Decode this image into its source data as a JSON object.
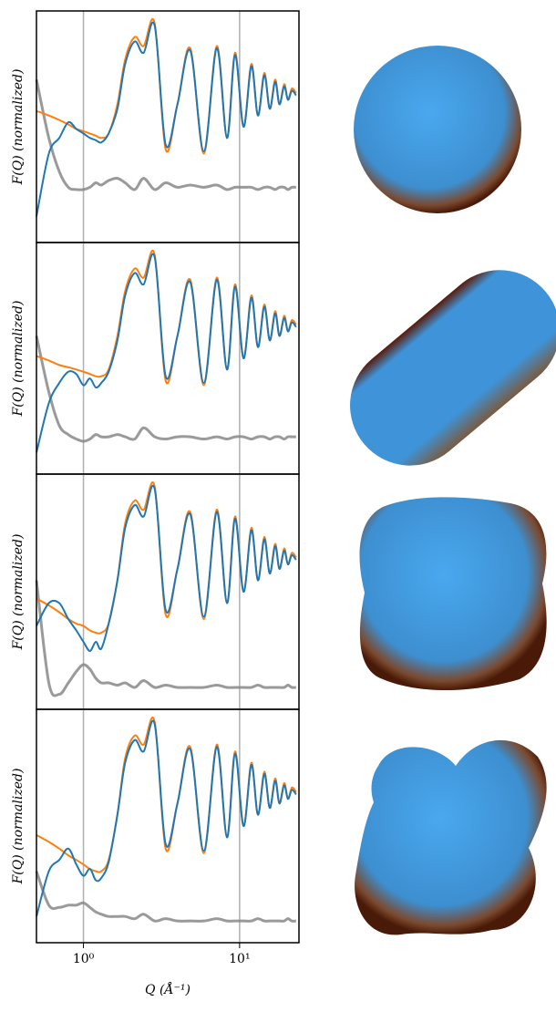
{
  "chart_data": [
    {
      "type": "line",
      "ylabel": "F(Q) (normalized)",
      "log_x": true,
      "grid": true,
      "xlim": [
        0.5,
        24
      ],
      "ylim": [
        0,
        1
      ],
      "xticks": [
        {
          "value": 1,
          "label": "10⁰"
        },
        {
          "value": 10,
          "label": "10¹"
        }
      ],
      "x": [
        0.5,
        0.6,
        0.7,
        0.8,
        0.9,
        1.0,
        1.1,
        1.2,
        1.3,
        1.45,
        1.65,
        1.85,
        2.13,
        2.43,
        2.86,
        3.36,
        4.0,
        4.83,
        5.9,
        7.14,
        8.3,
        9.35,
        10.6,
        11.9,
        13.1,
        14.4,
        15.6,
        16.9,
        18,
        19.3,
        20.4,
        21.6,
        23
      ],
      "series": [
        {
          "color": "#888888",
          "values": [
            0.71,
            0.45,
            0.3,
            0.23,
            0.22,
            0.22,
            0.23,
            0.25,
            0.24,
            0.26,
            0.27,
            0.25,
            0.22,
            0.27,
            0.22,
            0.25,
            0.23,
            0.24,
            0.23,
            0.24,
            0.22,
            0.23,
            0.23,
            0.23,
            0.22,
            0.23,
            0.23,
            0.22,
            0.23,
            0.23,
            0.22,
            0.23,
            0.23
          ]
        },
        {
          "color": "#ff7f0e",
          "values": [
            0.57,
            0.55,
            0.53,
            0.51,
            0.49,
            0.48,
            0.47,
            0.46,
            0.45,
            0.47,
            0.6,
            0.8,
            0.9,
            0.86,
            0.96,
            0.4,
            0.6,
            0.85,
            0.38,
            0.86,
            0.45,
            0.83,
            0.5,
            0.78,
            0.55,
            0.74,
            0.58,
            0.71,
            0.6,
            0.69,
            0.62,
            0.67,
            0.65
          ]
        },
        {
          "color": "#1f77b4",
          "values": [
            0.1,
            0.38,
            0.45,
            0.52,
            0.49,
            0.47,
            0.45,
            0.44,
            0.43,
            0.47,
            0.58,
            0.78,
            0.88,
            0.83,
            0.95,
            0.42,
            0.6,
            0.84,
            0.39,
            0.85,
            0.45,
            0.82,
            0.5,
            0.77,
            0.55,
            0.73,
            0.58,
            0.7,
            0.6,
            0.68,
            0.62,
            0.66,
            0.64
          ]
        }
      ]
    },
    {
      "type": "line",
      "ylabel": "F(Q) (normalized)",
      "log_x": true,
      "grid": true,
      "xlim": [
        0.5,
        24
      ],
      "ylim": [
        0,
        1
      ],
      "xticks": [
        {
          "value": 1,
          "label": "10⁰"
        },
        {
          "value": 10,
          "label": "10¹"
        }
      ],
      "x": [
        0.5,
        0.6,
        0.7,
        0.8,
        0.9,
        1.0,
        1.1,
        1.2,
        1.3,
        1.45,
        1.65,
        1.85,
        2.13,
        2.43,
        2.86,
        3.36,
        4.0,
        4.83,
        5.9,
        7.14,
        8.3,
        9.35,
        10.6,
        11.9,
        13.1,
        14.4,
        15.6,
        16.9,
        18,
        19.3,
        20.4,
        21.6,
        23
      ],
      "series": [
        {
          "color": "#888888",
          "values": [
            0.6,
            0.35,
            0.2,
            0.16,
            0.14,
            0.13,
            0.14,
            0.16,
            0.15,
            0.15,
            0.16,
            0.15,
            0.14,
            0.19,
            0.15,
            0.14,
            0.15,
            0.15,
            0.14,
            0.15,
            0.14,
            0.15,
            0.15,
            0.14,
            0.15,
            0.15,
            0.14,
            0.15,
            0.15,
            0.14,
            0.15,
            0.15,
            0.15
          ]
        },
        {
          "color": "#ff7f0e",
          "values": [
            0.51,
            0.49,
            0.47,
            0.46,
            0.45,
            0.44,
            0.43,
            0.42,
            0.42,
            0.45,
            0.6,
            0.8,
            0.9,
            0.86,
            0.96,
            0.4,
            0.6,
            0.85,
            0.38,
            0.86,
            0.45,
            0.83,
            0.5,
            0.78,
            0.55,
            0.74,
            0.58,
            0.71,
            0.6,
            0.69,
            0.62,
            0.67,
            0.65
          ]
        },
        {
          "color": "#1f77b4",
          "values": [
            0.08,
            0.3,
            0.39,
            0.44,
            0.43,
            0.38,
            0.41,
            0.37,
            0.39,
            0.44,
            0.58,
            0.78,
            0.88,
            0.83,
            0.95,
            0.42,
            0.6,
            0.84,
            0.39,
            0.85,
            0.45,
            0.82,
            0.5,
            0.77,
            0.55,
            0.73,
            0.58,
            0.7,
            0.6,
            0.68,
            0.62,
            0.66,
            0.64
          ]
        }
      ]
    },
    {
      "type": "line",
      "ylabel": "F(Q) (normalized)",
      "log_x": true,
      "grid": true,
      "xlim": [
        0.5,
        24
      ],
      "ylim": [
        0,
        1
      ],
      "xticks": [
        {
          "value": 1,
          "label": "10⁰"
        },
        {
          "value": 10,
          "label": "10¹"
        }
      ],
      "x": [
        0.5,
        0.6,
        0.7,
        0.8,
        0.9,
        1.0,
        1.1,
        1.2,
        1.3,
        1.45,
        1.65,
        1.85,
        2.13,
        2.43,
        2.86,
        3.36,
        4.0,
        4.83,
        5.9,
        7.14,
        8.3,
        9.35,
        10.6,
        11.9,
        13.1,
        14.4,
        15.6,
        16.9,
        18,
        19.3,
        20.4,
        21.6,
        23
      ],
      "series": [
        {
          "color": "#888888",
          "values": [
            0.55,
            0.1,
            0.05,
            0.1,
            0.15,
            0.18,
            0.16,
            0.12,
            0.1,
            0.1,
            0.09,
            0.1,
            0.08,
            0.11,
            0.08,
            0.09,
            0.08,
            0.08,
            0.08,
            0.09,
            0.08,
            0.08,
            0.08,
            0.08,
            0.09,
            0.08,
            0.08,
            0.08,
            0.08,
            0.08,
            0.09,
            0.08,
            0.08
          ]
        },
        {
          "color": "#ff7f0e",
          "values": [
            0.47,
            0.44,
            0.41,
            0.38,
            0.36,
            0.35,
            0.33,
            0.32,
            0.32,
            0.36,
            0.55,
            0.8,
            0.9,
            0.86,
            0.96,
            0.4,
            0.6,
            0.85,
            0.38,
            0.86,
            0.45,
            0.83,
            0.5,
            0.78,
            0.55,
            0.74,
            0.58,
            0.71,
            0.6,
            0.69,
            0.62,
            0.67,
            0.65
          ]
        },
        {
          "color": "#1f77b4",
          "values": [
            0.35,
            0.45,
            0.45,
            0.38,
            0.33,
            0.28,
            0.24,
            0.28,
            0.25,
            0.36,
            0.55,
            0.78,
            0.88,
            0.83,
            0.95,
            0.42,
            0.6,
            0.84,
            0.39,
            0.85,
            0.45,
            0.82,
            0.5,
            0.77,
            0.55,
            0.73,
            0.58,
            0.7,
            0.6,
            0.68,
            0.62,
            0.66,
            0.64
          ]
        }
      ]
    },
    {
      "type": "line",
      "ylabel": "F(Q) (normalized)",
      "xlabel": "Q (Å⁻¹)",
      "log_x": true,
      "grid": true,
      "xlim": [
        0.5,
        24
      ],
      "ylim": [
        0,
        1
      ],
      "xticks": [
        {
          "value": 1,
          "label": "10⁰"
        },
        {
          "value": 10,
          "label": "10¹"
        }
      ],
      "x": [
        0.5,
        0.6,
        0.7,
        0.8,
        0.9,
        1.0,
        1.1,
        1.2,
        1.3,
        1.45,
        1.65,
        1.85,
        2.13,
        2.43,
        2.86,
        3.36,
        4.0,
        4.83,
        5.9,
        7.14,
        8.3,
        9.35,
        10.6,
        11.9,
        13.1,
        14.4,
        15.6,
        16.9,
        18,
        19.3,
        20.4,
        21.6,
        23
      ],
      "series": [
        {
          "color": "#888888",
          "values": [
            0.3,
            0.15,
            0.14,
            0.15,
            0.15,
            0.16,
            0.14,
            0.12,
            0.11,
            0.1,
            0.1,
            0.1,
            0.09,
            0.11,
            0.08,
            0.09,
            0.08,
            0.08,
            0.08,
            0.09,
            0.08,
            0.08,
            0.08,
            0.08,
            0.09,
            0.08,
            0.08,
            0.08,
            0.08,
            0.08,
            0.09,
            0.08,
            0.08
          ]
        },
        {
          "color": "#ff7f0e",
          "values": [
            0.46,
            0.43,
            0.4,
            0.37,
            0.35,
            0.33,
            0.31,
            0.3,
            0.3,
            0.35,
            0.55,
            0.8,
            0.9,
            0.86,
            0.96,
            0.4,
            0.6,
            0.85,
            0.38,
            0.86,
            0.45,
            0.83,
            0.5,
            0.78,
            0.55,
            0.74,
            0.58,
            0.71,
            0.6,
            0.69,
            0.62,
            0.67,
            0.65
          ]
        },
        {
          "color": "#1f77b4",
          "values": [
            0.1,
            0.3,
            0.35,
            0.4,
            0.33,
            0.28,
            0.31,
            0.26,
            0.27,
            0.34,
            0.55,
            0.78,
            0.88,
            0.83,
            0.95,
            0.42,
            0.6,
            0.84,
            0.39,
            0.85,
            0.45,
            0.82,
            0.5,
            0.77,
            0.55,
            0.73,
            0.58,
            0.7,
            0.6,
            0.68,
            0.62,
            0.66,
            0.64
          ]
        }
      ]
    }
  ]
}
